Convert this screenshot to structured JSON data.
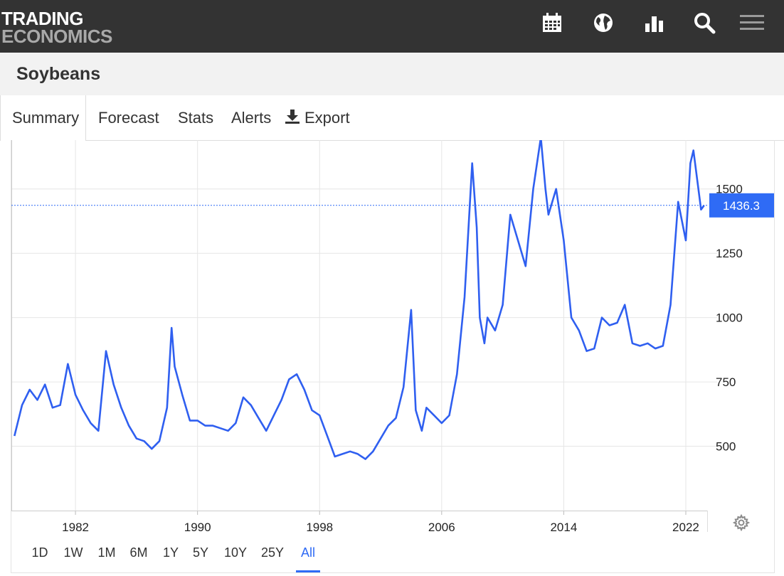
{
  "header": {
    "logo_line1": "TRADING",
    "logo_line2": "ECONOMICS",
    "icons": [
      "calendar-icon",
      "globe-icon",
      "bar-chart-icon",
      "search-icon",
      "menu-icon"
    ]
  },
  "page": {
    "title": "Soybeans"
  },
  "tabs": [
    {
      "label": "Summary",
      "active": true
    },
    {
      "label": "Forecast",
      "active": false
    },
    {
      "label": "Stats",
      "active": false
    },
    {
      "label": "Alerts",
      "active": false
    },
    {
      "label": "Export",
      "active": false,
      "icon": "download-icon"
    }
  ],
  "ranges": [
    {
      "label": "1D",
      "active": false
    },
    {
      "label": "1W",
      "active": false
    },
    {
      "label": "1M",
      "active": false
    },
    {
      "label": "6M",
      "active": false
    },
    {
      "label": "1Y",
      "active": false
    },
    {
      "label": "5Y",
      "active": false
    },
    {
      "label": "10Y",
      "active": false
    },
    {
      "label": "25Y",
      "active": false
    },
    {
      "label": "All",
      "active": true
    }
  ],
  "colors": {
    "line": "#2f5ff0",
    "badge": "#2f6bf5",
    "header_bg": "#333333",
    "grid": "#e6e6e6"
  },
  "chart_data": {
    "type": "line",
    "title": "",
    "xlabel": "",
    "ylabel": "",
    "x_ticks": [
      "1982",
      "1990",
      "1998",
      "2006",
      "2014",
      "2022"
    ],
    "y_ticks": [
      500,
      750,
      1000,
      1250,
      1500
    ],
    "xlim": [
      1977.8,
      2023.4
    ],
    "ylim": [
      250,
      1690
    ],
    "grid": true,
    "last_value": 1436.3,
    "last_value_label": "1436.3",
    "series": [
      {
        "x": [
          1978.0,
          1978.5,
          1979.0,
          1979.5,
          1980.0,
          1980.5,
          1981.0,
          1981.5,
          1982.0,
          1982.5,
          1983.0,
          1983.5,
          1984.0,
          1984.5,
          1985.0,
          1985.5,
          1986.0,
          1986.5,
          1987.0,
          1987.5,
          1988.0,
          1988.3,
          1988.5,
          1989.0,
          1989.5,
          1990.0,
          1990.5,
          1991.0,
          1991.5,
          1992.0,
          1992.5,
          1993.0,
          1993.5,
          1994.0,
          1994.5,
          1995.0,
          1995.5,
          1996.0,
          1996.5,
          1997.0,
          1997.5,
          1998.0,
          1998.5,
          1999.0,
          1999.5,
          2000.0,
          2000.5,
          2001.0,
          2001.5,
          2002.0,
          2002.5,
          2003.0,
          2003.5,
          2004.0,
          2004.3,
          2004.7,
          2005.0,
          2005.5,
          2006.0,
          2006.5,
          2007.0,
          2007.5,
          2008.0,
          2008.3,
          2008.5,
          2008.8,
          2009.0,
          2009.5,
          2010.0,
          2010.5,
          2011.0,
          2011.5,
          2012.0,
          2012.5,
          2012.8,
          2013.0,
          2013.5,
          2014.0,
          2014.5,
          2015.0,
          2015.5,
          2016.0,
          2016.5,
          2017.0,
          2017.5,
          2018.0,
          2018.5,
          2019.0,
          2019.5,
          2020.0,
          2020.5,
          2021.0,
          2021.5,
          2022.0,
          2022.3,
          2022.5,
          2023.0,
          2023.2
        ],
        "y": [
          540,
          660,
          720,
          680,
          740,
          650,
          660,
          820,
          700,
          640,
          590,
          560,
          870,
          740,
          650,
          580,
          530,
          520,
          490,
          520,
          650,
          960,
          810,
          700,
          600,
          600,
          580,
          580,
          570,
          560,
          590,
          690,
          660,
          610,
          560,
          620,
          680,
          760,
          780,
          720,
          640,
          620,
          540,
          460,
          470,
          480,
          470,
          450,
          480,
          530,
          580,
          610,
          730,
          1030,
          640,
          560,
          650,
          620,
          590,
          620,
          780,
          1080,
          1600,
          1350,
          1000,
          900,
          1000,
          950,
          1050,
          1400,
          1300,
          1200,
          1500,
          1700,
          1500,
          1400,
          1500,
          1300,
          1000,
          950,
          870,
          880,
          1000,
          970,
          980,
          1050,
          900,
          890,
          900,
          880,
          890,
          1050,
          1450,
          1300,
          1600,
          1650,
          1420,
          1436.3
        ]
      }
    ]
  }
}
